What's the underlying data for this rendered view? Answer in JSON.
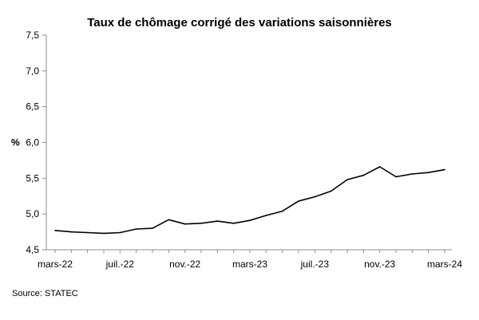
{
  "chart_data": {
    "type": "line",
    "title": "Taux de chômage corrigé des variations saisonnières",
    "ylabel": "%",
    "xlabel": "",
    "ylim": [
      4.5,
      7.5
    ],
    "yticks": [
      "4,5",
      "5,0",
      "5,5",
      "6,0",
      "6,5",
      "7,0",
      "7,5"
    ],
    "ytick_values": [
      4.5,
      5.0,
      5.5,
      6.0,
      6.5,
      7.0,
      7.5
    ],
    "xtick_labels": [
      "mars-22",
      "juil.-22",
      "nov.-22",
      "mars-23",
      "juil.-23",
      "nov.-23",
      "mars-24"
    ],
    "xtick_indices": [
      0,
      4,
      8,
      12,
      16,
      20,
      24
    ],
    "x": [
      "mars-22",
      "avr.-22",
      "mai-22",
      "juin-22",
      "juil.-22",
      "août-22",
      "sept.-22",
      "oct.-22",
      "nov.-22",
      "déc.-22",
      "janv.-23",
      "févr.-23",
      "mars-23",
      "avr.-23",
      "mai-23",
      "juin-23",
      "juil.-23",
      "août-23",
      "sept.-23",
      "oct.-23",
      "nov.-23",
      "déc.-23",
      "janv.-24",
      "févr.-24",
      "mars-24"
    ],
    "series": [
      {
        "values": [
          4.77,
          4.75,
          4.74,
          4.73,
          4.74,
          4.79,
          4.8,
          4.92,
          4.86,
          4.87,
          4.9,
          4.87,
          4.91,
          4.98,
          5.04,
          5.18,
          5.24,
          5.32,
          5.48,
          5.54,
          5.66,
          5.52,
          5.56,
          5.58,
          5.62
        ],
        "color": "#000000"
      }
    ],
    "grid": false,
    "legend": "none"
  },
  "source": "Source: STATEC"
}
